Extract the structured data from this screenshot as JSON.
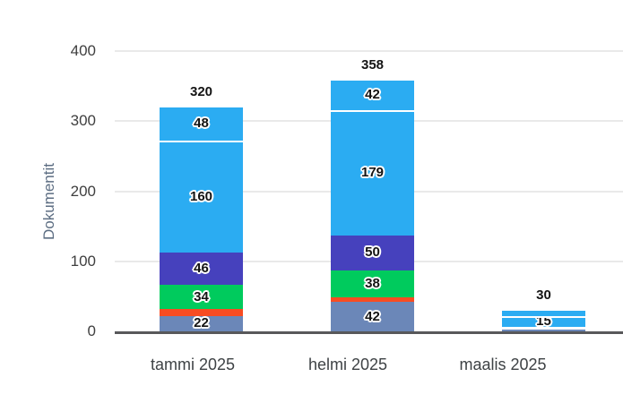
{
  "chart_data": {
    "type": "bar",
    "stacked": true,
    "title": "",
    "xlabel": "",
    "ylabel": "Dokumentit",
    "ylim": [
      0,
      400
    ],
    "yticks": [
      0,
      100,
      200,
      300,
      400
    ],
    "grid": "horizontal",
    "legend": "none",
    "categories": [
      "tammi 2025",
      "helmi 2025",
      "maalis 2025"
    ],
    "colors": {
      "slate": "#6B87B8",
      "orange": "#F84C22",
      "green": "#00CB5D",
      "indigo": "#4641BD",
      "lightblue": "#2BACF2"
    },
    "bars": [
      {
        "category": "tammi 2025",
        "total": 320,
        "total_label": "320",
        "segments": [
          {
            "value": 22,
            "label": "22",
            "color": "slate"
          },
          {
            "value": 10,
            "label": "",
            "color": "orange"
          },
          {
            "value": 34,
            "label": "34",
            "color": "green"
          },
          {
            "value": 46,
            "label": "46",
            "color": "indigo"
          },
          {
            "value": 160,
            "label": "160",
            "color": "lightblue"
          },
          {
            "value": 48,
            "label": "48",
            "color": "lightblue",
            "gap": true
          }
        ]
      },
      {
        "category": "helmi 2025",
        "total": 358,
        "total_label": "358",
        "segments": [
          {
            "value": 42,
            "label": "42",
            "color": "slate"
          },
          {
            "value": 7,
            "label": "",
            "color": "orange"
          },
          {
            "value": 38,
            "label": "38",
            "color": "green"
          },
          {
            "value": 50,
            "label": "50",
            "color": "indigo"
          },
          {
            "value": 179,
            "label": "179",
            "color": "lightblue"
          },
          {
            "value": 42,
            "label": "42",
            "color": "lightblue",
            "gap": true
          }
        ]
      },
      {
        "category": "maalis 2025",
        "total": 30,
        "total_label": "30",
        "segments": [
          {
            "value": 5,
            "label": "",
            "color": "slate"
          },
          {
            "value": 2,
            "label": "",
            "color": "indigo",
            "gap": true
          },
          {
            "value": 15,
            "label": "15",
            "color": "lightblue",
            "gap": true
          },
          {
            "value": 8,
            "label": "",
            "color": "lightblue",
            "gap": true
          }
        ]
      }
    ]
  }
}
